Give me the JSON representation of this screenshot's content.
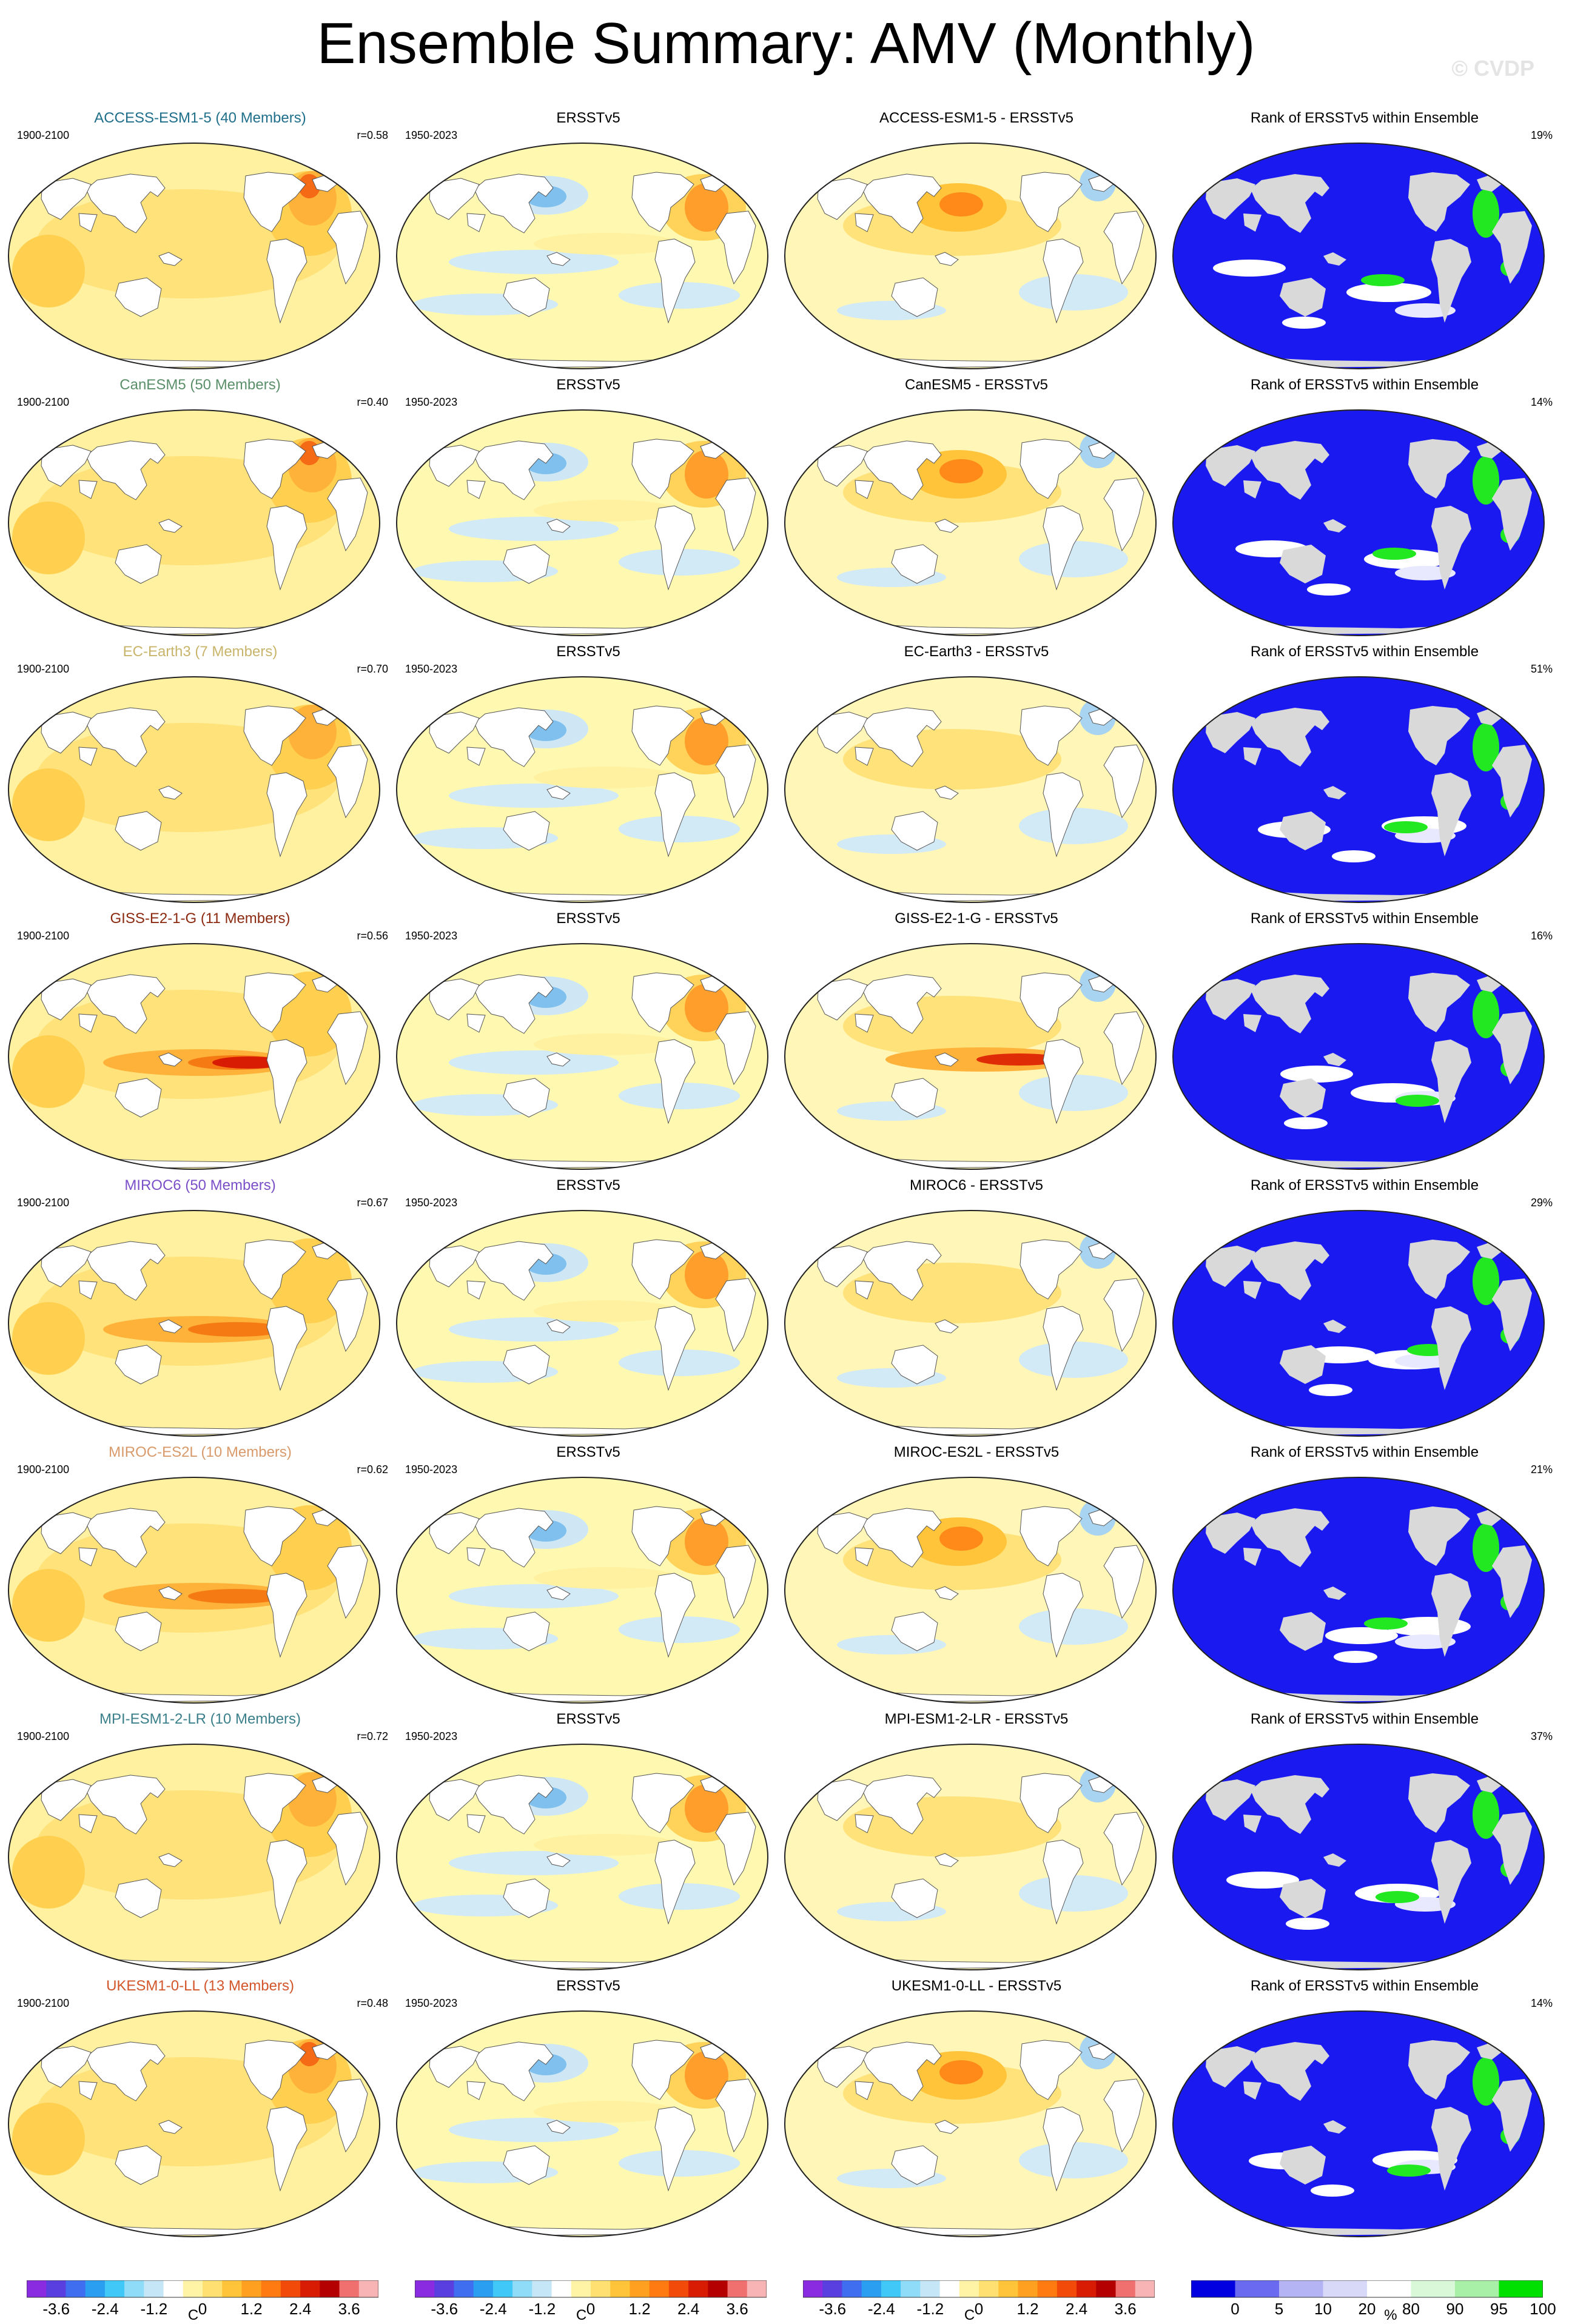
{
  "title": "Ensemble Summary: AMV (Monthly)",
  "copyright": "© CVDP",
  "column_titles": {
    "observation": "ERSSTv5",
    "rank": "Rank of ERSSTv5 within Ensemble"
  },
  "periods": {
    "model": "1900-2100",
    "observation": "1950-2023"
  },
  "rows": [
    {
      "model_title": "ACCESS-ESM1-5 (40 Members)",
      "title_color": "#1f6f8b",
      "correlation": "r=0.58",
      "diff_title": "ACCESS-ESM1-5 - ERSSTv5",
      "rank_pct": "19%",
      "mean_pattern": "strong north Atlantic",
      "diff_pattern": "north Pacific warm"
    },
    {
      "model_title": "CanESM5 (50 Members)",
      "title_color": "#5a8f6a",
      "correlation": "r=0.40",
      "diff_title": "CanESM5 - ERSSTv5",
      "rank_pct": "14%",
      "mean_pattern": "strong north Atlantic",
      "diff_pattern": "north Pacific warm"
    },
    {
      "model_title": "EC-Earth3 (7 Members)",
      "title_color": "#c8b46a",
      "correlation": "r=0.70",
      "diff_title": "EC-Earth3 - ERSSTv5",
      "rank_pct": "51%",
      "mean_pattern": "north Atlantic",
      "diff_pattern": "weak mixed"
    },
    {
      "model_title": "GISS-E2-1-G (11 Members)",
      "title_color": "#8b2a10",
      "correlation": "r=0.56",
      "diff_title": "GISS-E2-1-G - ERSSTv5",
      "rank_pct": "16%",
      "mean_pattern": "strong east Pacific",
      "diff_pattern": "strong east Pacific"
    },
    {
      "model_title": "MIROC6 (50 Members)",
      "title_color": "#7a4fc8",
      "correlation": "r=0.67",
      "diff_title": "MIROC6 - ERSSTv5",
      "rank_pct": "29%",
      "mean_pattern": "east Pacific",
      "diff_pattern": "weak mixed"
    },
    {
      "model_title": "MIROC-ES2L (10 Members)",
      "title_color": "#d89a6a",
      "correlation": "r=0.62",
      "diff_title": "MIROC-ES2L - ERSSTv5",
      "rank_pct": "21%",
      "mean_pattern": "east Pacific",
      "diff_pattern": "north Pacific warm"
    },
    {
      "model_title": "MPI-ESM1-2-LR (10 Members)",
      "title_color": "#3a7f8a",
      "correlation": "r=0.72",
      "diff_title": "MPI-ESM1-2-LR - ERSSTv5",
      "rank_pct": "37%",
      "mean_pattern": "north Atlantic",
      "diff_pattern": "weak mixed"
    },
    {
      "model_title": "UKESM1-0-LL (13 Members)",
      "title_color": "#d2562a",
      "correlation": "r=0.48",
      "diff_title": "UKESM1-0-LL - ERSSTv5",
      "rank_pct": "14%",
      "mean_pattern": "strong north Atlantic",
      "diff_pattern": "north Pacific warm"
    }
  ],
  "colorbars": {
    "temperature": {
      "unit": "C",
      "labels": [
        "-3.6",
        "-2.4",
        "-1.2",
        "0",
        "1.2",
        "2.4",
        "3.6"
      ],
      "colors": [
        "#8a2be2",
        "#5a3fe0",
        "#3f6ef0",
        "#2a9ef0",
        "#40c8f8",
        "#8fdcf8",
        "#c4e6f6",
        "#ffffff",
        "#fff3a6",
        "#ffe070",
        "#ffc43a",
        "#ffa020",
        "#ff7a10",
        "#f24a08",
        "#d81c04",
        "#b40000",
        "#f07070",
        "#f8b4b4"
      ]
    },
    "rank": {
      "unit": "%",
      "labels": [
        "0",
        "5",
        "10",
        "20",
        "80",
        "90",
        "95",
        "100"
      ],
      "colors": [
        "#0000e0",
        "#6a6af0",
        "#b4b4f4",
        "#d8d8f8",
        "#ffffff",
        "#d8f8d8",
        "#a8f0a8",
        "#00e000"
      ]
    }
  }
}
